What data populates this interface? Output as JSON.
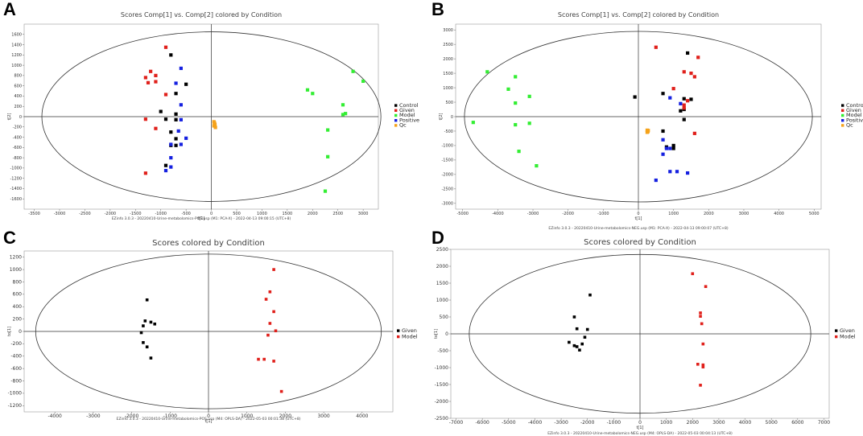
{
  "panel_labels": [
    "A",
    "B",
    "C",
    "D"
  ],
  "chart_data": [
    {
      "id": "A",
      "type": "scatter",
      "title": "Scores Comp[1] vs. Comp[2] colored by Condition",
      "xlabel": "t[1]",
      "ylabel": "t[2]",
      "xlim": [
        -3700,
        3300
      ],
      "ylim": [
        -1800,
        1800
      ],
      "xticks": [
        -3500,
        -3000,
        -2500,
        -2000,
        -1500,
        -1000,
        -500,
        0,
        500,
        1000,
        1500,
        2000,
        2500,
        3000
      ],
      "yticks": [
        -1600,
        -1400,
        -1200,
        -1000,
        -800,
        -600,
        -400,
        -200,
        0,
        200,
        400,
        600,
        800,
        1000,
        1200,
        1400,
        1600
      ],
      "ellipse": {
        "rx": 3350,
        "ry": 1650
      },
      "footer": "EZinfo 3.0.3 - 20220410-Urine-metabolomics-POS.usp (M1: PCA-X) - 2022-04-13 09:00:15 (UTC+8)",
      "series": [
        {
          "name": "Control",
          "color": "#000000",
          "points": [
            [
              -800,
              1200
            ],
            [
              -700,
              450
            ],
            [
              -500,
              630
            ],
            [
              -1000,
              100
            ],
            [
              -700,
              50
            ],
            [
              -900,
              -50
            ],
            [
              -700,
              -60
            ],
            [
              -800,
              -300
            ],
            [
              -700,
              -430
            ],
            [
              -800,
              -560
            ],
            [
              -700,
              -560
            ],
            [
              -900,
              -950
            ]
          ]
        },
        {
          "name": "Given",
          "color": "#e0201b",
          "points": [
            [
              -900,
              1350
            ],
            [
              -1200,
              880
            ],
            [
              -1300,
              760
            ],
            [
              -1100,
              800
            ],
            [
              -1250,
              660
            ],
            [
              -1100,
              680
            ],
            [
              -900,
              430
            ],
            [
              -1300,
              -50
            ],
            [
              -1100,
              -230
            ],
            [
              -1300,
              -1100
            ]
          ]
        },
        {
          "name": "Model",
          "color": "#33ee33",
          "points": [
            [
              2800,
              880
            ],
            [
              3000,
              690
            ],
            [
              1900,
              520
            ],
            [
              2000,
              450
            ],
            [
              2600,
              230
            ],
            [
              2600,
              40
            ],
            [
              2650,
              60
            ],
            [
              2300,
              -260
            ],
            [
              2300,
              -780
            ],
            [
              2250,
              -1450
            ]
          ]
        },
        {
          "name": "Positive",
          "color": "#1520e0",
          "points": [
            [
              -600,
              940
            ],
            [
              -700,
              650
            ],
            [
              -600,
              230
            ],
            [
              -600,
              -60
            ],
            [
              -650,
              -280
            ],
            [
              -500,
              -420
            ],
            [
              -800,
              -540
            ],
            [
              -600,
              -540
            ],
            [
              -800,
              -800
            ],
            [
              -800,
              -980
            ],
            [
              -900,
              -1050
            ]
          ]
        },
        {
          "name": "Qc",
          "color": "#f5a21a",
          "points": [
            [
              50,
              -100
            ],
            [
              60,
              -130
            ],
            [
              70,
              -150
            ],
            [
              50,
              -180
            ],
            [
              80,
              -210
            ],
            [
              60,
              -120
            ],
            [
              70,
              -170
            ]
          ]
        }
      ]
    },
    {
      "id": "B",
      "type": "scatter",
      "title": "Scores Comp[1] vs. Comp[2] colored by Condition",
      "xlabel": "t[1]",
      "ylabel": "t[2]",
      "xlim": [
        -5200,
        5200
      ],
      "ylim": [
        -3200,
        3200
      ],
      "xticks": [
        -5000,
        -4000,
        -3000,
        -2000,
        -1000,
        0,
        1000,
        2000,
        3000,
        4000,
        5000
      ],
      "yticks": [
        -3000,
        -2500,
        -2000,
        -1500,
        -1000,
        -500,
        0,
        500,
        1000,
        1500,
        2000,
        2500,
        3000
      ],
      "ellipse": {
        "rx": 4950,
        "ry": 2950
      },
      "footer": "EZinfo 3.0.3 - 20220410-Urine-metabolomics-NEG.usp (M1: PCA-X) - 2022-04-13 09:00:07 (UTC+8)",
      "series": [
        {
          "name": "Control",
          "color": "#000000",
          "points": [
            [
              1400,
              2200
            ],
            [
              -100,
              680
            ],
            [
              700,
              800
            ],
            [
              1300,
              620
            ],
            [
              1500,
              600
            ],
            [
              1200,
              200
            ],
            [
              1300,
              250
            ],
            [
              1300,
              -100
            ],
            [
              700,
              -500
            ],
            [
              800,
              -1050
            ],
            [
              1000,
              -1100
            ],
            [
              1000,
              -1000
            ]
          ]
        },
        {
          "name": "Given",
          "color": "#e0201b",
          "points": [
            [
              500,
              2400
            ],
            [
              1700,
              2050
            ],
            [
              1300,
              1550
            ],
            [
              1500,
              1500
            ],
            [
              1600,
              1380
            ],
            [
              1000,
              970
            ],
            [
              1300,
              400
            ],
            [
              1300,
              300
            ],
            [
              1400,
              550
            ],
            [
              1600,
              -580
            ]
          ]
        },
        {
          "name": "Model",
          "color": "#33ee33",
          "points": [
            [
              -4300,
              1550
            ],
            [
              -3500,
              1380
            ],
            [
              -3700,
              950
            ],
            [
              -3100,
              700
            ],
            [
              -3500,
              470
            ],
            [
              -4700,
              -200
            ],
            [
              -3500,
              -280
            ],
            [
              -3100,
              -230
            ],
            [
              -3400,
              -1200
            ],
            [
              -2900,
              -1700
            ]
          ]
        },
        {
          "name": "Positive",
          "color": "#1520e0",
          "points": [
            [
              900,
              650
            ],
            [
              1200,
              450
            ],
            [
              700,
              -800
            ],
            [
              800,
              -1100
            ],
            [
              900,
              -1100
            ],
            [
              700,
              -1300
            ],
            [
              900,
              -1900
            ],
            [
              1100,
              -1900
            ],
            [
              1400,
              -1950
            ],
            [
              500,
              -2200
            ]
          ]
        },
        {
          "name": "Qc",
          "color": "#f5a21a",
          "points": [
            [
              250,
              -470
            ],
            [
              260,
              -500
            ],
            [
              270,
              -520
            ],
            [
              250,
              -540
            ],
            [
              280,
              -480
            ],
            [
              260,
              -510
            ]
          ]
        }
      ]
    },
    {
      "id": "C",
      "type": "scatter",
      "title": "Scores colored by Condition",
      "xlabel": "t[1]",
      "ylabel": "to[1]",
      "xlim": [
        -4800,
        4800
      ],
      "ylim": [
        -1300,
        1300
      ],
      "xticks": [
        -4000,
        -3000,
        -2000,
        -1000,
        0,
        1000,
        2000,
        3000,
        4000
      ],
      "yticks": [
        -1200,
        -1000,
        -800,
        -600,
        -400,
        -200,
        0,
        200,
        400,
        600,
        800,
        1000,
        1200
      ],
      "ellipse": {
        "rx": 4500,
        "ry": 1250
      },
      "footer": "EZinfo 3.0.3 - 20220410-Urine-metabolomics-POS.usp (M4: OPLS-DA) - 2022-05-03 00:01:38 (UTC+8)",
      "series": [
        {
          "name": "Given",
          "color": "#000000",
          "points": [
            [
              -1600,
              510
            ],
            [
              -1650,
              170
            ],
            [
              -1500,
              150
            ],
            [
              -1400,
              120
            ],
            [
              -1700,
              90
            ],
            [
              -1750,
              -20
            ],
            [
              -1700,
              -180
            ],
            [
              -1600,
              -250
            ],
            [
              -1500,
              -430
            ]
          ]
        },
        {
          "name": "Model",
          "color": "#e0201b",
          "points": [
            [
              1700,
              1000
            ],
            [
              1600,
              640
            ],
            [
              1500,
              520
            ],
            [
              1700,
              320
            ],
            [
              1600,
              130
            ],
            [
              1750,
              10
            ],
            [
              1550,
              -60
            ],
            [
              1300,
              -450
            ],
            [
              1450,
              -450
            ],
            [
              1700,
              -480
            ],
            [
              1900,
              -970
            ]
          ]
        }
      ]
    },
    {
      "id": "D",
      "type": "scatter",
      "title": "Scores colored by Condition",
      "xlabel": "t[1]",
      "ylabel": "to[1]",
      "xlim": [
        -7200,
        7200
      ],
      "ylim": [
        -2500,
        2500
      ],
      "xticks": [
        -7000,
        -6000,
        -5000,
        -4000,
        -3000,
        -2000,
        -1000,
        0,
        1000,
        2000,
        3000,
        4000,
        5000,
        6000,
        7000
      ],
      "yticks": [
        -2500,
        -2000,
        -1500,
        -1000,
        -500,
        0,
        500,
        1000,
        1500,
        2000,
        2500
      ],
      "ellipse": {
        "rx": 6500,
        "ry": 2350
      },
      "footer": "EZinfo 3.0.3 - 20220410-Urine-metabolomics-NEG.usp (M4: OPLS-DA) - 2022-05-03 00:04:13 (UTC+8)",
      "series": [
        {
          "name": "Given",
          "color": "#000000",
          "points": [
            [
              -1900,
              1150
            ],
            [
              -2500,
              500
            ],
            [
              -2400,
              150
            ],
            [
              -2000,
              130
            ],
            [
              -2100,
              -100
            ],
            [
              -2700,
              -250
            ],
            [
              -2500,
              -350
            ],
            [
              -2200,
              -300
            ],
            [
              -2400,
              -380
            ],
            [
              -2300,
              -480
            ]
          ]
        },
        {
          "name": "Model",
          "color": "#e0201b",
          "points": [
            [
              2000,
              1780
            ],
            [
              2500,
              1400
            ],
            [
              2300,
              620
            ],
            [
              2300,
              520
            ],
            [
              2350,
              300
            ],
            [
              2400,
              -300
            ],
            [
              2200,
              -900
            ],
            [
              2400,
              -920
            ],
            [
              2400,
              -980
            ],
            [
              2300,
              -1520
            ]
          ]
        }
      ]
    }
  ]
}
